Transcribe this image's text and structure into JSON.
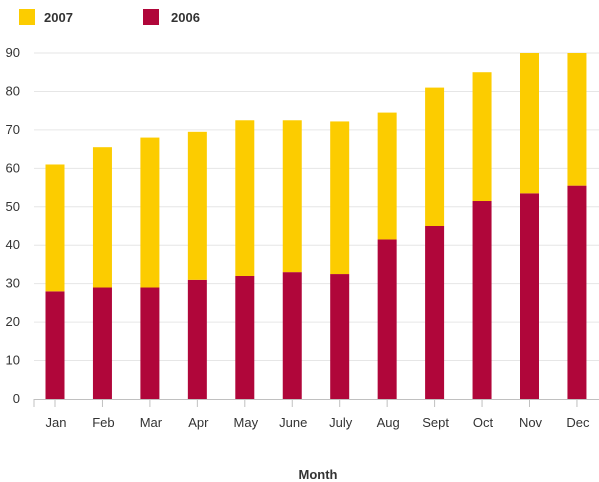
{
  "chart_data": {
    "type": "bar",
    "stacked": true,
    "categories": [
      "Jan",
      "Feb",
      "Mar",
      "Apr",
      "May",
      "June",
      "July",
      "Aug",
      "Sept",
      "Oct",
      "Nov",
      "Dec"
    ],
    "series": [
      {
        "name": "2006",
        "color": "#b0063a",
        "values": [
          28,
          29,
          29,
          31,
          32,
          33,
          32.5,
          41.5,
          45,
          51.5,
          53.5,
          55.5
        ]
      },
      {
        "name": "2007",
        "color": "#fccc00",
        "values": [
          33,
          36.5,
          39,
          38.5,
          40.5,
          39.5,
          39.7,
          33,
          36,
          33.5,
          36.5,
          34.5
        ]
      }
    ],
    "legend_order": [
      "2007",
      "2006"
    ],
    "title": "",
    "xlabel": "Month",
    "ylabel": "",
    "ylim": [
      0,
      90
    ],
    "yticks": [
      0,
      10,
      20,
      30,
      40,
      50,
      60,
      70,
      80,
      90
    ],
    "grid": true,
    "legend_position": "top-left"
  }
}
